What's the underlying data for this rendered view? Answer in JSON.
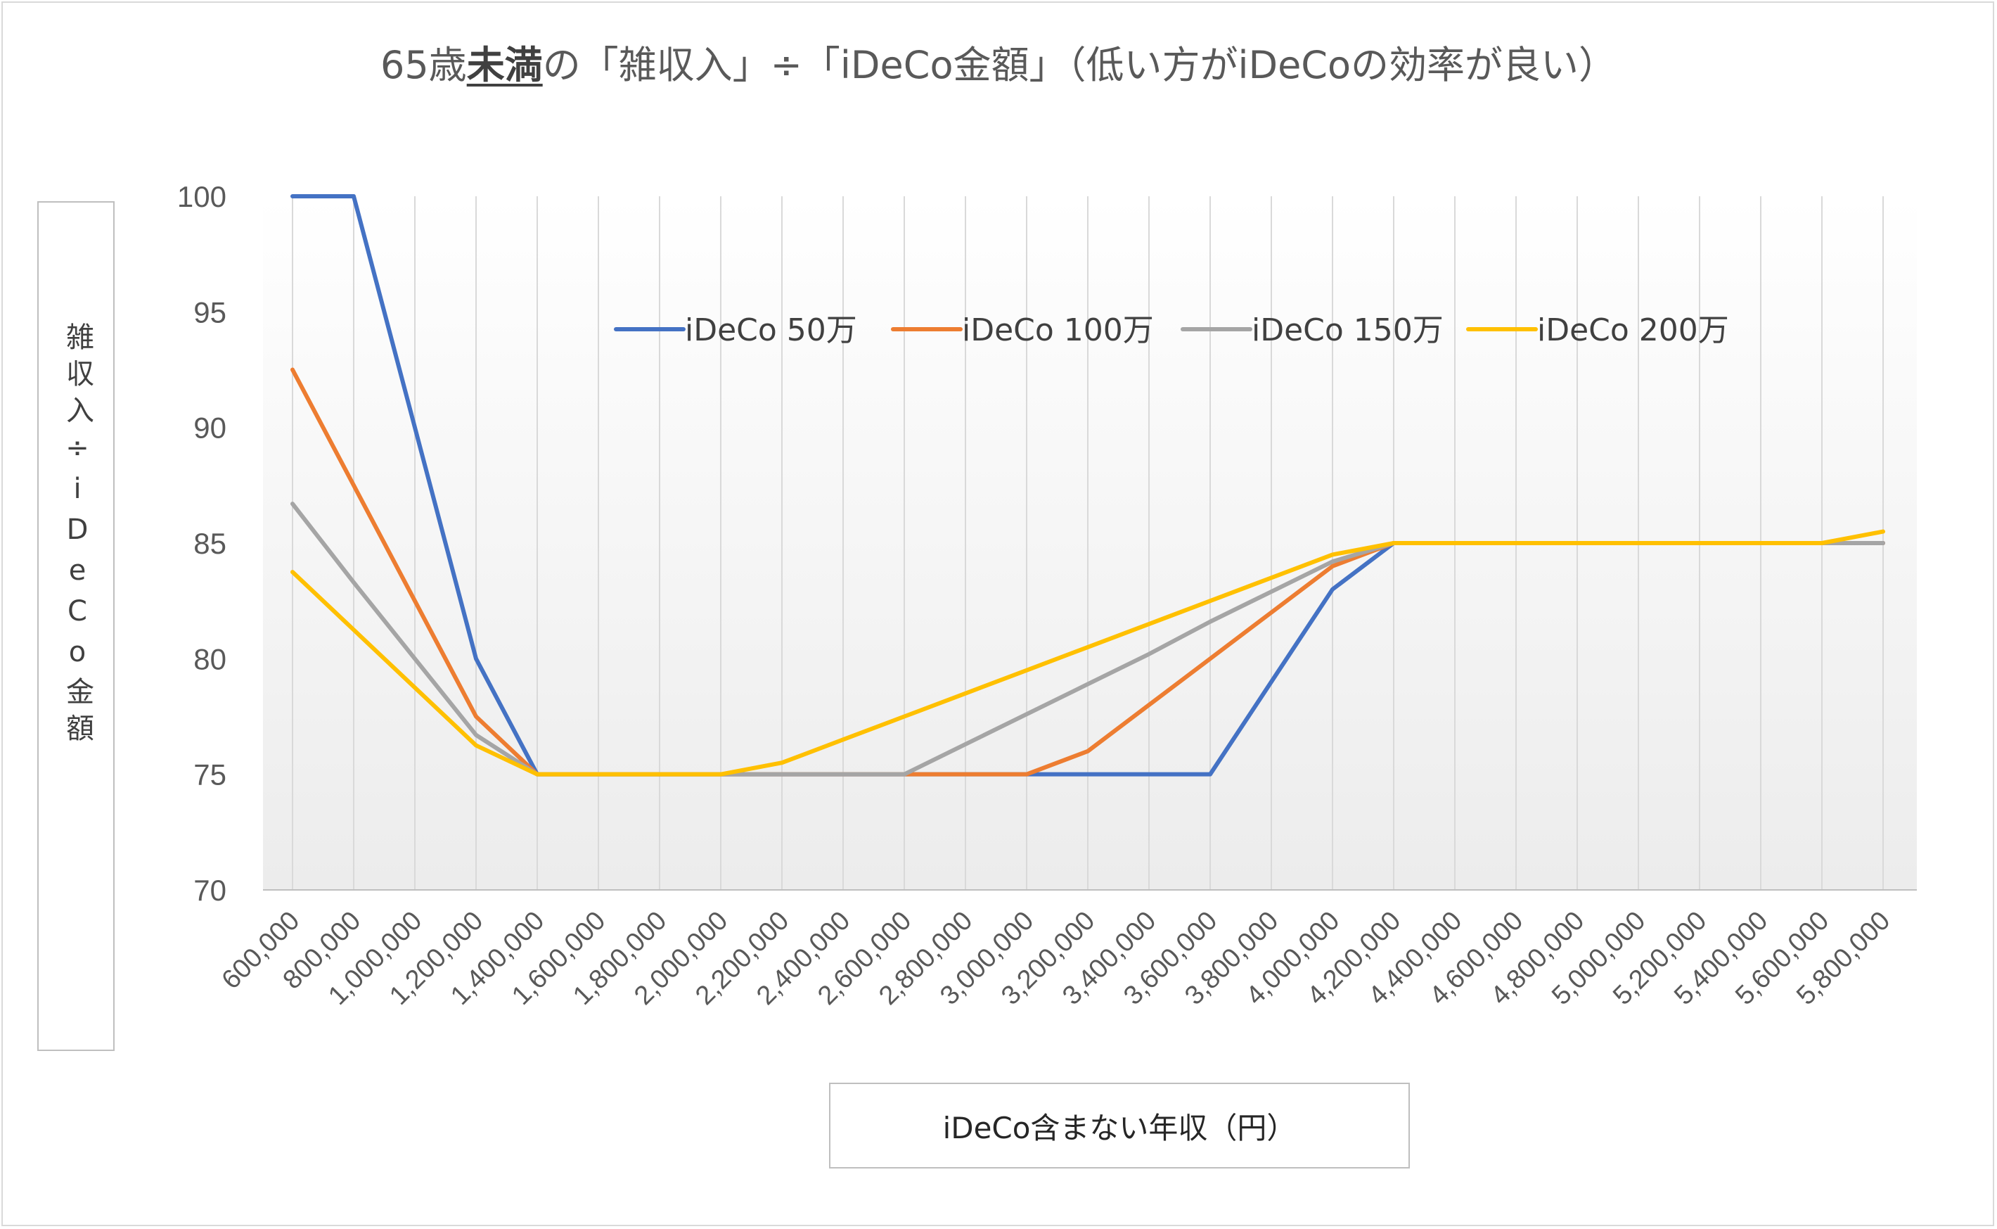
{
  "title": {
    "prefix": "65歳",
    "emphasis": "未満",
    "suffix": "の「雑収入」÷「iDeCo金額」（低い方がiDeCoの効率が良い）"
  },
  "ylabel": "雑収入÷iDeCo金額",
  "xlabel": "iDeCo含まない年収（円）",
  "chart_data": {
    "type": "line",
    "title": "65歳未満の「雑収入」÷「iDeCo金額」（低い方がiDeCoの効率が良い）",
    "xlabel": "iDeCo含まない年収（円）",
    "ylabel": "雑収入÷iDeCo金額",
    "ylim": [
      70,
      100
    ],
    "yticks": [
      70,
      75,
      80,
      85,
      90,
      95,
      100
    ],
    "grid": "vertical",
    "legend_position": "top-center",
    "categories": [
      "600,000",
      "800,000",
      "1,000,000",
      "1,200,000",
      "1,400,000",
      "1,600,000",
      "1,800,000",
      "2,000,000",
      "2,200,000",
      "2,400,000",
      "2,600,000",
      "2,800,000",
      "3,000,000",
      "3,200,000",
      "3,400,000",
      "3,600,000",
      "3,800,000",
      "4,000,000",
      "4,200,000",
      "4,400,000",
      "4,600,000",
      "4,800,000",
      "5,000,000",
      "5,200,000",
      "5,400,000",
      "5,600,000",
      "5,800,000"
    ],
    "series": [
      {
        "name": "iDeCo 50万",
        "color": "#4472c4",
        "values": [
          100,
          100,
          90,
          80,
          75,
          75,
          75,
          75,
          75,
          75,
          75,
          75,
          75,
          75,
          75,
          75,
          79,
          83,
          85,
          85,
          85,
          85,
          85,
          85,
          85,
          85,
          85
        ]
      },
      {
        "name": "iDeCo 100万",
        "color": "#ed7d31",
        "values": [
          92.5,
          87.5,
          82.5,
          77.5,
          75,
          75,
          75,
          75,
          75,
          75,
          75,
          75,
          75,
          76,
          78,
          80,
          82,
          84,
          85,
          85,
          85,
          85,
          85,
          85,
          85,
          85,
          85
        ]
      },
      {
        "name": "iDeCo 150万",
        "color": "#a5a5a5",
        "values": [
          86.7,
          83.3,
          80,
          76.7,
          75,
          75,
          75,
          75,
          75,
          75,
          75,
          76.3,
          77.6,
          78.9,
          80.2,
          81.6,
          82.9,
          84.2,
          85,
          85,
          85,
          85,
          85,
          85,
          85,
          85,
          85
        ]
      },
      {
        "name": "iDeCo 200万",
        "color": "#ffc000",
        "values": [
          83.75,
          81.25,
          78.75,
          76.25,
          75,
          75,
          75,
          75,
          75.5,
          76.5,
          77.5,
          78.5,
          79.5,
          80.5,
          81.5,
          82.5,
          83.5,
          84.5,
          85,
          85,
          85,
          85,
          85,
          85,
          85,
          85,
          85.5
        ]
      }
    ]
  }
}
